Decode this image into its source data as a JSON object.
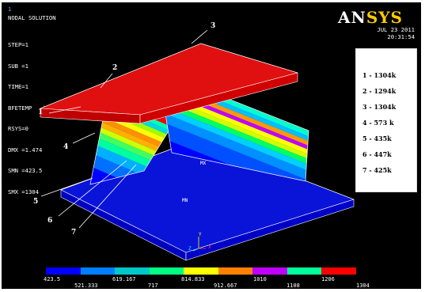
{
  "window_number": "1",
  "solution_title": "NODAL SOLUTION",
  "status": [
    "STEP=1",
    "SUB =1",
    "TIME=1",
    "BFETEMP   (AVG)",
    "RSYS=0",
    "DMX =1.474",
    "SMN =423.5",
    "SMX =1304"
  ],
  "logo": {
    "prefix": "AN",
    "suffix": "SYS"
  },
  "date": "JUL 23 2011",
  "time": "20:31:54",
  "legend": [
    {
      "label": "1  - 1304k"
    },
    {
      "label": "2  - 1294k"
    },
    {
      "label": "3  - 1304k"
    },
    {
      "label": "4  - 573 k"
    },
    {
      "label": "5  - 435k"
    },
    {
      "label": "6  - 447k"
    },
    {
      "label": "7  - 425k"
    }
  ],
  "callouts": [
    "1",
    "2",
    "3",
    "4",
    "5",
    "6",
    "7"
  ],
  "node_labels": {
    "max": "MX",
    "min": "MN"
  },
  "axis_labels": {
    "x": "X",
    "y": "Y",
    "z": "Z"
  },
  "colorbar": {
    "colors": [
      "#0000ff",
      "#0080ff",
      "#00c8c8",
      "#00ff80",
      "#c8ff00",
      "#ffff00",
      "#ff8000",
      "#c000ff",
      "#00ff9a",
      "#ff0000"
    ],
    "top_labels": [
      "423.5",
      "619.167",
      "814.833",
      "1010",
      "1206"
    ],
    "bottom_labels": [
      "521.333",
      "717",
      "912.667",
      "1108",
      "1304"
    ]
  }
}
